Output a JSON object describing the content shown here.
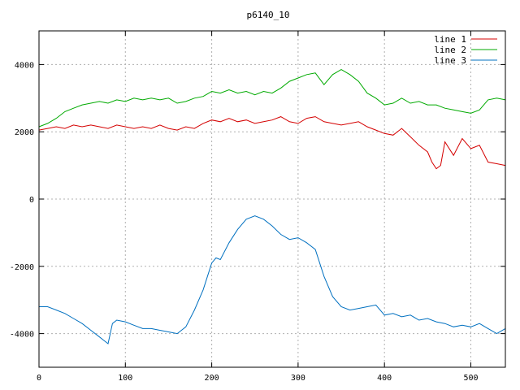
{
  "chart_data": {
    "type": "line",
    "title": "p6140_10",
    "xlabel": "",
    "ylabel": "",
    "xlim": [
      0,
      540
    ],
    "ylim": [
      -5000,
      5000
    ],
    "x_ticks": [
      0,
      100,
      200,
      300,
      400,
      500
    ],
    "y_ticks": [
      -4000,
      -2000,
      0,
      2000,
      4000
    ],
    "grid": true,
    "legend_position": "top-right",
    "series": [
      {
        "name": "line 1",
        "color": "#d40000",
        "x": [
          0,
          10,
          20,
          30,
          40,
          50,
          60,
          70,
          80,
          90,
          100,
          110,
          120,
          130,
          140,
          150,
          160,
          170,
          180,
          190,
          200,
          210,
          220,
          230,
          240,
          250,
          260,
          270,
          280,
          290,
          300,
          310,
          320,
          330,
          340,
          350,
          360,
          370,
          380,
          390,
          400,
          410,
          420,
          430,
          440,
          450,
          455,
          460,
          465,
          470,
          480,
          490,
          500,
          510,
          520,
          530,
          540
        ],
        "y": [
          2050,
          2100,
          2150,
          2100,
          2200,
          2150,
          2200,
          2150,
          2100,
          2200,
          2150,
          2100,
          2150,
          2100,
          2200,
          2100,
          2050,
          2150,
          2100,
          2250,
          2350,
          2300,
          2400,
          2300,
          2350,
          2250,
          2300,
          2350,
          2450,
          2300,
          2250,
          2400,
          2450,
          2300,
          2250,
          2200,
          2250,
          2300,
          2150,
          2050,
          1950,
          1900,
          2100,
          1850,
          1600,
          1400,
          1100,
          900,
          1000,
          1700,
          1300,
          1800,
          1500,
          1600,
          1100,
          1050,
          1000
        ]
      },
      {
        "name": "line 2",
        "color": "#00aa00",
        "x": [
          0,
          10,
          20,
          30,
          40,
          50,
          60,
          70,
          80,
          90,
          100,
          110,
          120,
          130,
          140,
          150,
          160,
          170,
          180,
          190,
          200,
          210,
          220,
          230,
          240,
          250,
          260,
          270,
          280,
          290,
          300,
          310,
          320,
          330,
          340,
          350,
          360,
          370,
          380,
          390,
          400,
          410,
          420,
          430,
          440,
          450,
          460,
          470,
          480,
          490,
          500,
          510,
          520,
          530,
          540
        ],
        "y": [
          2150,
          2250,
          2400,
          2600,
          2700,
          2800,
          2850,
          2900,
          2850,
          2950,
          2900,
          3000,
          2950,
          3000,
          2950,
          3000,
          2850,
          2900,
          3000,
          3050,
          3200,
          3150,
          3250,
          3150,
          3200,
          3100,
          3200,
          3150,
          3300,
          3500,
          3600,
          3700,
          3750,
          3400,
          3700,
          3850,
          3700,
          3500,
          3150,
          3000,
          2800,
          2850,
          3000,
          2850,
          2900,
          2800,
          2800,
          2700,
          2650,
          2600,
          2550,
          2650,
          2950,
          3000,
          2950
        ]
      },
      {
        "name": "line 3",
        "color": "#0070c0",
        "x": [
          0,
          10,
          20,
          30,
          40,
          50,
          60,
          70,
          75,
          80,
          85,
          90,
          100,
          110,
          120,
          130,
          140,
          150,
          160,
          170,
          180,
          190,
          200,
          205,
          210,
          220,
          230,
          240,
          250,
          260,
          270,
          280,
          290,
          300,
          310,
          320,
          330,
          340,
          350,
          360,
          370,
          380,
          390,
          400,
          410,
          420,
          430,
          440,
          450,
          460,
          470,
          480,
          490,
          500,
          510,
          520,
          530,
          540
        ],
        "y": [
          -3200,
          -3200,
          -3300,
          -3400,
          -3550,
          -3700,
          -3900,
          -4100,
          -4200,
          -4300,
          -3700,
          -3600,
          -3650,
          -3750,
          -3850,
          -3850,
          -3900,
          -3950,
          -4000,
          -3800,
          -3300,
          -2700,
          -1900,
          -1750,
          -1800,
          -1300,
          -900,
          -600,
          -500,
          -600,
          -800,
          -1050,
          -1200,
          -1150,
          -1300,
          -1500,
          -2300,
          -2900,
          -3200,
          -3300,
          -3250,
          -3200,
          -3150,
          -3450,
          -3400,
          -3500,
          -3450,
          -3600,
          -3550,
          -3650,
          -3700,
          -3800,
          -3750,
          -3800,
          -3700,
          -3850,
          -4000,
          -3850
        ]
      }
    ]
  }
}
